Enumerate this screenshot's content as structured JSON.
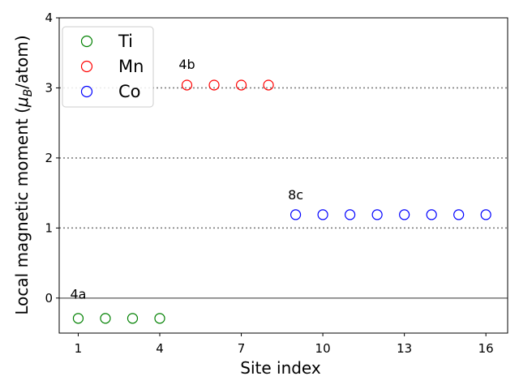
{
  "chart_data": {
    "type": "scatter",
    "xlabel": "Site index",
    "ylabel_parts": [
      "Local magnetic moment (",
      "μ",
      "B",
      "/atom)"
    ],
    "xlim": [
      0.3,
      16.8
    ],
    "ylim": [
      -0.5,
      4.0
    ],
    "xticks": [
      1,
      4,
      7,
      10,
      13,
      16
    ],
    "yticks": [
      0,
      1,
      2,
      3,
      4
    ],
    "grid": "dotted horizontal lines at y = 1, 2, 3",
    "reference_line_y": 0,
    "legend_placement": "top-left",
    "marker": "hollow-circle",
    "series": [
      {
        "name": "Ti",
        "color": "#008000",
        "x": [
          1,
          2,
          3,
          4
        ],
        "y": [
          -0.29,
          -0.29,
          -0.29,
          -0.29
        ]
      },
      {
        "name": "Mn",
        "color": "#ff0000",
        "x": [
          5,
          6,
          7,
          8
        ],
        "y": [
          3.04,
          3.04,
          3.04,
          3.04
        ]
      },
      {
        "name": "Co",
        "color": "#0000ff",
        "x": [
          9,
          10,
          11,
          12,
          13,
          14,
          15,
          16
        ],
        "y": [
          1.19,
          1.19,
          1.19,
          1.19,
          1.19,
          1.19,
          1.19,
          1.19
        ]
      }
    ],
    "annotations": [
      {
        "text": "4a",
        "x": 1,
        "y": -0.01
      },
      {
        "text": "4b",
        "x": 5,
        "y": 3.27
      },
      {
        "text": "8c",
        "x": 9,
        "y": 1.41
      }
    ]
  }
}
